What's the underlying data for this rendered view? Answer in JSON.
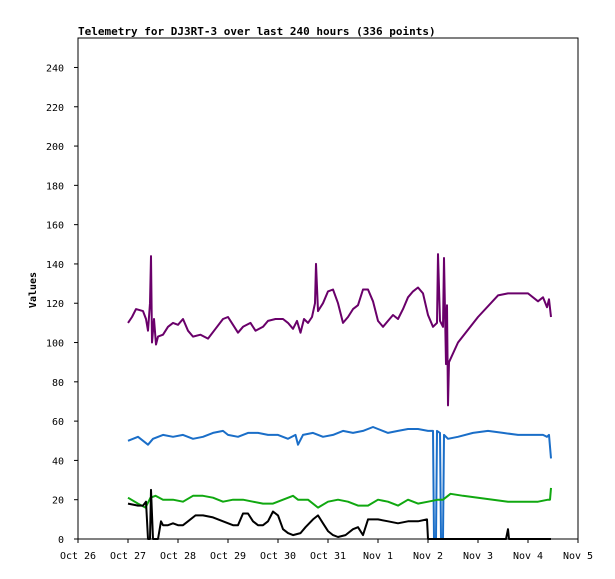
{
  "chart_data": {
    "type": "line",
    "title": "Telemetry for DJ3RT-3 over last 240 hours (336 points)",
    "xlabel": "",
    "ylabel": "Values",
    "ylim": [
      0,
      255
    ],
    "xlim": [
      0,
      10
    ],
    "y_ticks": [
      0,
      20,
      40,
      60,
      80,
      100,
      120,
      140,
      160,
      180,
      200,
      220,
      240
    ],
    "x_ticks": [
      {
        "x": 0,
        "label": "Oct 26"
      },
      {
        "x": 1,
        "label": "Oct 27"
      },
      {
        "x": 2,
        "label": "Oct 28"
      },
      {
        "x": 3,
        "label": "Oct 29"
      },
      {
        "x": 4,
        "label": "Oct 30"
      },
      {
        "x": 5,
        "label": "Oct 31"
      },
      {
        "x": 6,
        "label": "Nov 1"
      },
      {
        "x": 7,
        "label": "Nov 2"
      },
      {
        "x": 8,
        "label": "Nov 3"
      },
      {
        "x": 9,
        "label": "Nov 4"
      },
      {
        "x": 10,
        "label": "Nov 5"
      }
    ],
    "grid": false,
    "legend": "none",
    "series": [
      {
        "color": "#6a006a",
        "points": [
          [
            1.0,
            110
          ],
          [
            1.08,
            113
          ],
          [
            1.16,
            117
          ],
          [
            1.3,
            116
          ],
          [
            1.36,
            112
          ],
          [
            1.4,
            106
          ],
          [
            1.44,
            120
          ],
          [
            1.46,
            144
          ],
          [
            1.48,
            100
          ],
          [
            1.52,
            112
          ],
          [
            1.56,
            99
          ],
          [
            1.6,
            103
          ],
          [
            1.7,
            104
          ],
          [
            1.8,
            108
          ],
          [
            1.9,
            110
          ],
          [
            2.0,
            109
          ],
          [
            2.1,
            112
          ],
          [
            2.2,
            106
          ],
          [
            2.3,
            103
          ],
          [
            2.45,
            104
          ],
          [
            2.6,
            102
          ],
          [
            2.75,
            107
          ],
          [
            2.9,
            112
          ],
          [
            3.0,
            113
          ],
          [
            3.1,
            109
          ],
          [
            3.2,
            105
          ],
          [
            3.3,
            108
          ],
          [
            3.45,
            110
          ],
          [
            3.55,
            106
          ],
          [
            3.7,
            108
          ],
          [
            3.8,
            111
          ],
          [
            3.95,
            112
          ],
          [
            4.1,
            112
          ],
          [
            4.2,
            110
          ],
          [
            4.3,
            107
          ],
          [
            4.38,
            111
          ],
          [
            4.45,
            105
          ],
          [
            4.52,
            112
          ],
          [
            4.6,
            110
          ],
          [
            4.68,
            113
          ],
          [
            4.74,
            120
          ],
          [
            4.76,
            140
          ],
          [
            4.8,
            116
          ],
          [
            4.9,
            120
          ],
          [
            5.0,
            126
          ],
          [
            5.1,
            127
          ],
          [
            5.2,
            120
          ],
          [
            5.3,
            110
          ],
          [
            5.4,
            113
          ],
          [
            5.5,
            117
          ],
          [
            5.6,
            119
          ],
          [
            5.7,
            127
          ],
          [
            5.8,
            127
          ],
          [
            5.9,
            121
          ],
          [
            6.0,
            111
          ],
          [
            6.1,
            108
          ],
          [
            6.2,
            111
          ],
          [
            6.3,
            114
          ],
          [
            6.4,
            112
          ],
          [
            6.5,
            117
          ],
          [
            6.6,
            123
          ],
          [
            6.7,
            126
          ],
          [
            6.8,
            128
          ],
          [
            6.9,
            125
          ],
          [
            7.0,
            114
          ],
          [
            7.1,
            108
          ],
          [
            7.18,
            110
          ],
          [
            7.2,
            145
          ],
          [
            7.24,
            111
          ],
          [
            7.3,
            108
          ],
          [
            7.32,
            143
          ],
          [
            7.36,
            89
          ],
          [
            7.38,
            119
          ],
          [
            7.4,
            68
          ],
          [
            7.42,
            90
          ],
          [
            7.6,
            100
          ],
          [
            8.0,
            113
          ],
          [
            8.4,
            124
          ],
          [
            8.6,
            125
          ],
          [
            8.8,
            125
          ],
          [
            9.0,
            125
          ],
          [
            9.2,
            121
          ],
          [
            9.3,
            123
          ],
          [
            9.38,
            118
          ],
          [
            9.42,
            122
          ],
          [
            9.46,
            113
          ]
        ]
      },
      {
        "color": "#1a6ec8",
        "points": [
          [
            1.0,
            50
          ],
          [
            1.2,
            52
          ],
          [
            1.4,
            48
          ],
          [
            1.5,
            51
          ],
          [
            1.7,
            53
          ],
          [
            1.9,
            52
          ],
          [
            2.1,
            53
          ],
          [
            2.3,
            51
          ],
          [
            2.5,
            52
          ],
          [
            2.7,
            54
          ],
          [
            2.9,
            55
          ],
          [
            3.0,
            53
          ],
          [
            3.2,
            52
          ],
          [
            3.4,
            54
          ],
          [
            3.6,
            54
          ],
          [
            3.8,
            53
          ],
          [
            4.0,
            53
          ],
          [
            4.2,
            51
          ],
          [
            4.35,
            53
          ],
          [
            4.4,
            48
          ],
          [
            4.5,
            53
          ],
          [
            4.7,
            54
          ],
          [
            4.9,
            52
          ],
          [
            5.1,
            53
          ],
          [
            5.3,
            55
          ],
          [
            5.5,
            54
          ],
          [
            5.7,
            55
          ],
          [
            5.9,
            57
          ],
          [
            6.0,
            56
          ],
          [
            6.2,
            54
          ],
          [
            6.4,
            55
          ],
          [
            6.6,
            56
          ],
          [
            6.8,
            56
          ],
          [
            7.0,
            55
          ],
          [
            7.1,
            55
          ],
          [
            7.12,
            0
          ],
          [
            7.16,
            0
          ],
          [
            7.18,
            55
          ],
          [
            7.24,
            54
          ],
          [
            7.26,
            0
          ],
          [
            7.3,
            0
          ],
          [
            7.32,
            53
          ],
          [
            7.4,
            51
          ],
          [
            7.6,
            52
          ],
          [
            7.9,
            54
          ],
          [
            8.2,
            55
          ],
          [
            8.5,
            54
          ],
          [
            8.8,
            53
          ],
          [
            9.1,
            53
          ],
          [
            9.3,
            53
          ],
          [
            9.38,
            52
          ],
          [
            9.42,
            53
          ],
          [
            9.46,
            41
          ]
        ]
      },
      {
        "color": "#10a810",
        "points": [
          [
            1.0,
            21
          ],
          [
            1.2,
            18
          ],
          [
            1.35,
            16
          ],
          [
            1.45,
            21
          ],
          [
            1.55,
            22
          ],
          [
            1.7,
            20
          ],
          [
            1.9,
            20
          ],
          [
            2.1,
            19
          ],
          [
            2.3,
            22
          ],
          [
            2.5,
            22
          ],
          [
            2.7,
            21
          ],
          [
            2.9,
            19
          ],
          [
            3.1,
            20
          ],
          [
            3.3,
            20
          ],
          [
            3.5,
            19
          ],
          [
            3.7,
            18
          ],
          [
            3.9,
            18
          ],
          [
            4.1,
            20
          ],
          [
            4.3,
            22
          ],
          [
            4.4,
            20
          ],
          [
            4.6,
            20
          ],
          [
            4.8,
            16
          ],
          [
            5.0,
            19
          ],
          [
            5.2,
            20
          ],
          [
            5.4,
            19
          ],
          [
            5.6,
            17
          ],
          [
            5.8,
            17
          ],
          [
            6.0,
            20
          ],
          [
            6.2,
            19
          ],
          [
            6.4,
            17
          ],
          [
            6.6,
            20
          ],
          [
            6.8,
            18
          ],
          [
            7.0,
            19
          ],
          [
            7.2,
            20
          ],
          [
            7.3,
            20
          ],
          [
            7.45,
            23
          ],
          [
            7.7,
            22
          ],
          [
            8.0,
            21
          ],
          [
            8.3,
            20
          ],
          [
            8.6,
            19
          ],
          [
            8.9,
            19
          ],
          [
            9.2,
            19
          ],
          [
            9.4,
            20
          ],
          [
            9.44,
            20
          ],
          [
            9.46,
            26
          ]
        ]
      },
      {
        "color": "#000000",
        "points": [
          [
            1.0,
            18
          ],
          [
            1.2,
            17
          ],
          [
            1.3,
            17
          ],
          [
            1.36,
            19
          ],
          [
            1.4,
            0
          ],
          [
            1.44,
            0
          ],
          [
            1.46,
            25
          ],
          [
            1.5,
            0
          ],
          [
            1.6,
            0
          ],
          [
            1.66,
            9
          ],
          [
            1.7,
            7
          ],
          [
            1.8,
            7
          ],
          [
            1.9,
            8
          ],
          [
            2.0,
            7
          ],
          [
            2.1,
            7
          ],
          [
            2.2,
            9
          ],
          [
            2.35,
            12
          ],
          [
            2.5,
            12
          ],
          [
            2.7,
            11
          ],
          [
            2.9,
            9
          ],
          [
            3.1,
            7
          ],
          [
            3.2,
            7
          ],
          [
            3.3,
            13
          ],
          [
            3.4,
            13
          ],
          [
            3.5,
            9
          ],
          [
            3.6,
            7
          ],
          [
            3.7,
            7
          ],
          [
            3.8,
            9
          ],
          [
            3.9,
            14
          ],
          [
            4.0,
            12
          ],
          [
            4.1,
            5
          ],
          [
            4.2,
            3
          ],
          [
            4.3,
            2
          ],
          [
            4.45,
            3
          ],
          [
            4.55,
            6
          ],
          [
            4.7,
            10
          ],
          [
            4.8,
            12
          ],
          [
            4.9,
            8
          ],
          [
            5.0,
            4
          ],
          [
            5.1,
            2
          ],
          [
            5.2,
            1
          ],
          [
            5.35,
            2
          ],
          [
            5.5,
            5
          ],
          [
            5.6,
            6
          ],
          [
            5.7,
            2
          ],
          [
            5.8,
            10
          ],
          [
            6.0,
            10
          ],
          [
            6.2,
            9
          ],
          [
            6.4,
            8
          ],
          [
            6.6,
            9
          ],
          [
            6.8,
            9
          ],
          [
            6.98,
            10
          ],
          [
            7.0,
            0
          ],
          [
            7.4,
            0
          ],
          [
            8.0,
            0
          ],
          [
            8.4,
            0
          ],
          [
            8.56,
            0
          ],
          [
            8.6,
            5
          ],
          [
            8.62,
            0
          ],
          [
            9.0,
            0
          ],
          [
            9.4,
            0
          ],
          [
            9.46,
            0
          ]
        ]
      }
    ]
  }
}
